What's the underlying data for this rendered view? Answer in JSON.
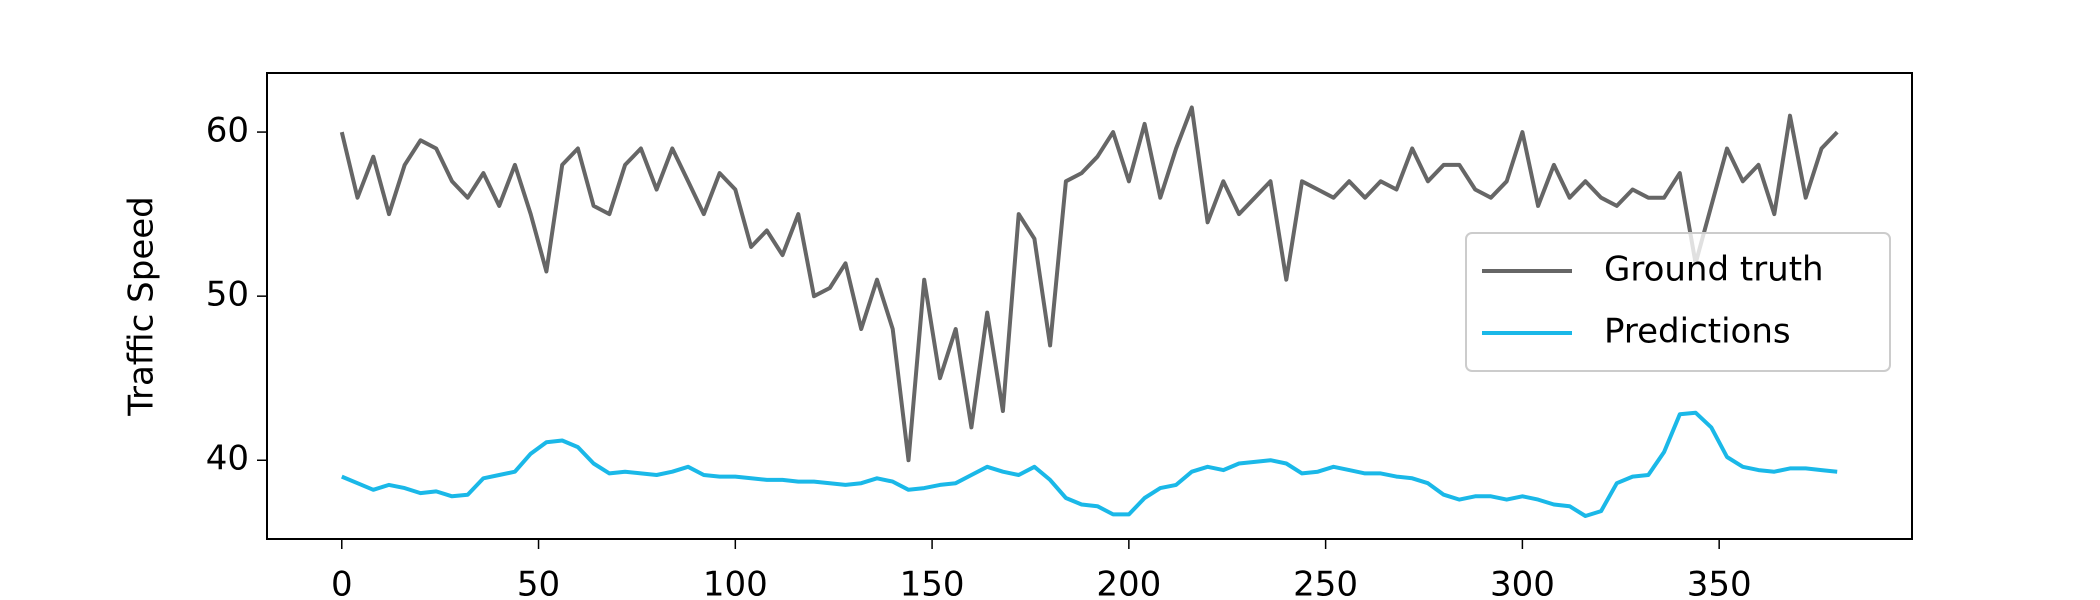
{
  "chart_data": {
    "type": "line",
    "ylabel": "Traffic Speed",
    "xlim": [
      -19,
      399
    ],
    "ylim": [
      35.2,
      63.6
    ],
    "xticks": [
      0,
      50,
      100,
      150,
      200,
      250,
      300,
      350
    ],
    "yticks": [
      40,
      50,
      60
    ],
    "grid": false,
    "legend": "center right",
    "x": [
      0,
      4,
      8,
      12,
      16,
      20,
      24,
      28,
      32,
      36,
      40,
      44,
      48,
      52,
      56,
      60,
      64,
      68,
      72,
      76,
      80,
      84,
      88,
      92,
      96,
      100,
      104,
      108,
      112,
      116,
      120,
      124,
      128,
      132,
      136,
      140,
      144,
      148,
      152,
      156,
      160,
      164,
      168,
      172,
      176,
      180,
      184,
      188,
      192,
      196,
      200,
      204,
      208,
      212,
      216,
      220,
      224,
      228,
      232,
      236,
      240,
      244,
      248,
      252,
      256,
      260,
      264,
      268,
      272,
      276,
      280,
      284,
      288,
      292,
      296,
      300,
      304,
      308,
      312,
      316,
      320,
      324,
      328,
      332,
      336,
      340,
      344,
      348,
      352,
      356,
      360,
      364,
      368,
      372,
      376,
      380
    ],
    "series": [
      {
        "name": "Ground truth",
        "color": "#666666",
        "values": [
          60,
          56,
          58.5,
          55,
          58,
          59.5,
          59,
          57,
          56,
          57.5,
          55.5,
          58,
          55,
          51.5,
          58,
          59,
          55.5,
          55,
          58,
          59,
          56.5,
          59,
          57,
          55,
          57.5,
          56.5,
          53,
          54,
          52.5,
          55,
          50,
          50.5,
          52,
          48,
          51,
          48,
          40,
          51,
          45,
          48,
          42,
          49,
          43,
          55,
          53.5,
          47,
          57,
          57.5,
          58.5,
          60,
          57,
          60.5,
          56,
          59,
          61.5,
          54.5,
          57,
          55,
          56,
          57,
          51,
          57,
          56.5,
          56,
          57,
          56,
          57,
          56.5,
          59,
          57,
          58,
          58,
          56.5,
          56,
          57,
          60,
          55.5,
          58,
          56,
          57,
          56,
          55.5,
          56.5,
          56,
          56,
          57.5,
          52,
          55.5,
          59,
          57,
          58,
          55,
          61,
          56,
          59,
          60
        ]
      },
      {
        "name": "Predictions",
        "color": "#1ab8e8",
        "values": [
          39,
          38.6,
          38.2,
          38.5,
          38.3,
          38,
          38.1,
          37.8,
          37.9,
          38.9,
          39.1,
          39.3,
          40.4,
          41.1,
          41.2,
          40.8,
          39.8,
          39.2,
          39.3,
          39.2,
          39.1,
          39.3,
          39.6,
          39.1,
          39,
          39,
          38.9,
          38.8,
          38.8,
          38.7,
          38.7,
          38.6,
          38.5,
          38.6,
          38.9,
          38.7,
          38.2,
          38.3,
          38.5,
          38.6,
          39.1,
          39.6,
          39.3,
          39.1,
          39.6,
          38.8,
          37.7,
          37.3,
          37.2,
          36.7,
          36.7,
          37.7,
          38.3,
          38.5,
          39.3,
          39.6,
          39.4,
          39.8,
          39.9,
          40,
          39.8,
          39.2,
          39.3,
          39.6,
          39.4,
          39.2,
          39.2,
          39,
          38.9,
          38.6,
          37.9,
          37.6,
          37.8,
          37.8,
          37.6,
          37.8,
          37.6,
          37.3,
          37.2,
          36.6,
          36.9,
          38.6,
          39,
          39.1,
          40.5,
          42.8,
          42.9,
          42,
          40.2,
          39.6,
          39.4,
          39.3,
          39.5,
          39.5,
          39.4,
          39.3
        ]
      }
    ]
  }
}
